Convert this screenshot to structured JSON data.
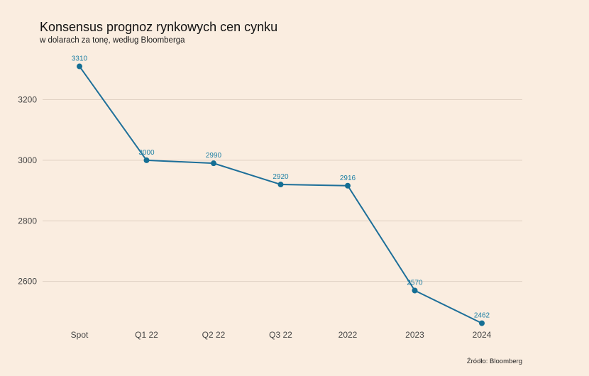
{
  "chart_data": {
    "type": "line",
    "title": "Konsensus prognoz rynkowych cen cynku",
    "subtitle": "w dolarach za tonę, według Bloomberga",
    "source": "Źródło: Bloomberg",
    "categories": [
      "Spot",
      "Q1 22",
      "Q2 22",
      "Q3 22",
      "2022",
      "2023",
      "2024"
    ],
    "values": [
      3310,
      3000,
      2990,
      2920,
      2916,
      2570,
      2462
    ],
    "data_labels": [
      "3310",
      "3000",
      "2990",
      "2920",
      "2916",
      "2570",
      "2462"
    ],
    "yticks": [
      2600,
      2800,
      3000,
      3200
    ],
    "ylim": [
      2440,
      3330
    ],
    "grid": true,
    "legend": "none",
    "colors": {
      "line": "#1d6f99",
      "labels": "#1d7fa4",
      "background": "#faede0"
    }
  }
}
